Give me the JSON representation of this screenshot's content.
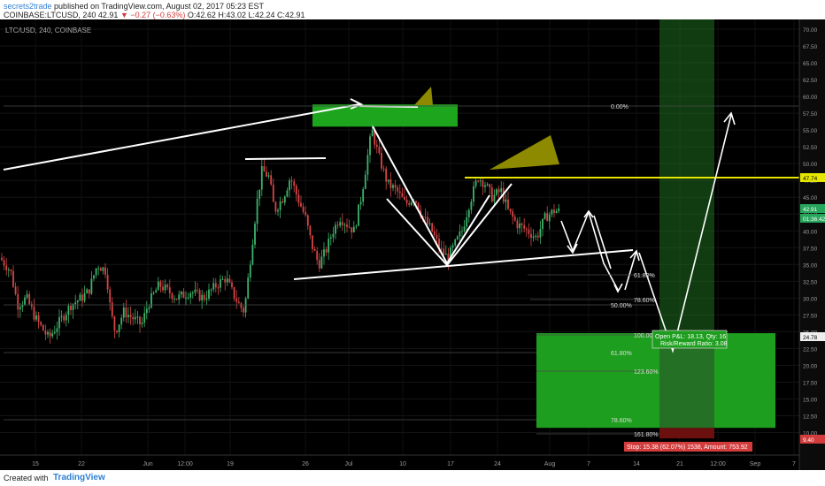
{
  "header": {
    "author": "secrets2trade",
    "published": "published on TradingView.com, August 02, 2017 05:23 EST",
    "symbol_line": "COINBASE:LTCUSD, 240",
    "last": "42.91",
    "change": "▼ −0.27 (−0.63%)",
    "ohlc": "O:42.62 H:43.02 L:42.24 C:42.91"
  },
  "footer": {
    "created_with": "Created with",
    "brand": "TradingView"
  },
  "chart_data": {
    "type": "candlestick",
    "title": "LTC/USD, 240, COINBASE",
    "ylim": [
      9.6,
      70
    ],
    "y_ticks": [
      "70.00",
      "67.50",
      "65.00",
      "62.50",
      "60.00",
      "57.50",
      "55.00",
      "52.50",
      "50.00",
      "47.50",
      "45.00",
      "42.50",
      "40.00",
      "37.50",
      "35.00",
      "32.50",
      "30.00",
      "27.50",
      "25.00",
      "22.50",
      "20.00",
      "17.50",
      "15.00",
      "12.50",
      "10.00"
    ],
    "x_ticks": [
      "15",
      "22",
      "Jun",
      "12:00",
      "19",
      "26",
      "Jul",
      "10",
      "17",
      "24",
      "Aug",
      "7",
      "14",
      "21",
      "12:00",
      "Sep",
      "7"
    ],
    "price_tags": [
      {
        "label": "47.74",
        "value": 47.74,
        "color": "#e6e600"
      },
      {
        "label": "42.91",
        "value": 42.91,
        "color": "#26a65b"
      },
      {
        "label": "01:36:42",
        "value": 41.8,
        "color": "#26a65b"
      },
      {
        "label": "24.78",
        "value": 24.78,
        "color": "#eeeeee"
      },
      {
        "label": "9.40",
        "value": 9.4,
        "color": "#d23c3c"
      }
    ],
    "fib_levels": [
      {
        "label": "0.00%",
        "value": 57.8
      },
      {
        "label": "61.80%",
        "value": 34.0
      },
      {
        "label": "50.00%",
        "value": 29.0
      },
      {
        "label": "78.60%",
        "value": 29.6
      },
      {
        "label": "100.00%",
        "value": 24.78
      },
      {
        "label": "61.80%",
        "value": 22.4
      },
      {
        "label": "123.60%",
        "value": 18.3
      },
      {
        "label": "78.60%",
        "value": 12.3
      },
      {
        "label": "161.80%",
        "value": 10.7
      }
    ],
    "position": {
      "open_pnl": "Open P&L: 18.13, Qty: 16",
      "risk_reward": "Risk/Reward Ratio: 3.08",
      "stop": "Stop: 15.38 (62.07%) 1538, Amount: 753.92"
    }
  }
}
